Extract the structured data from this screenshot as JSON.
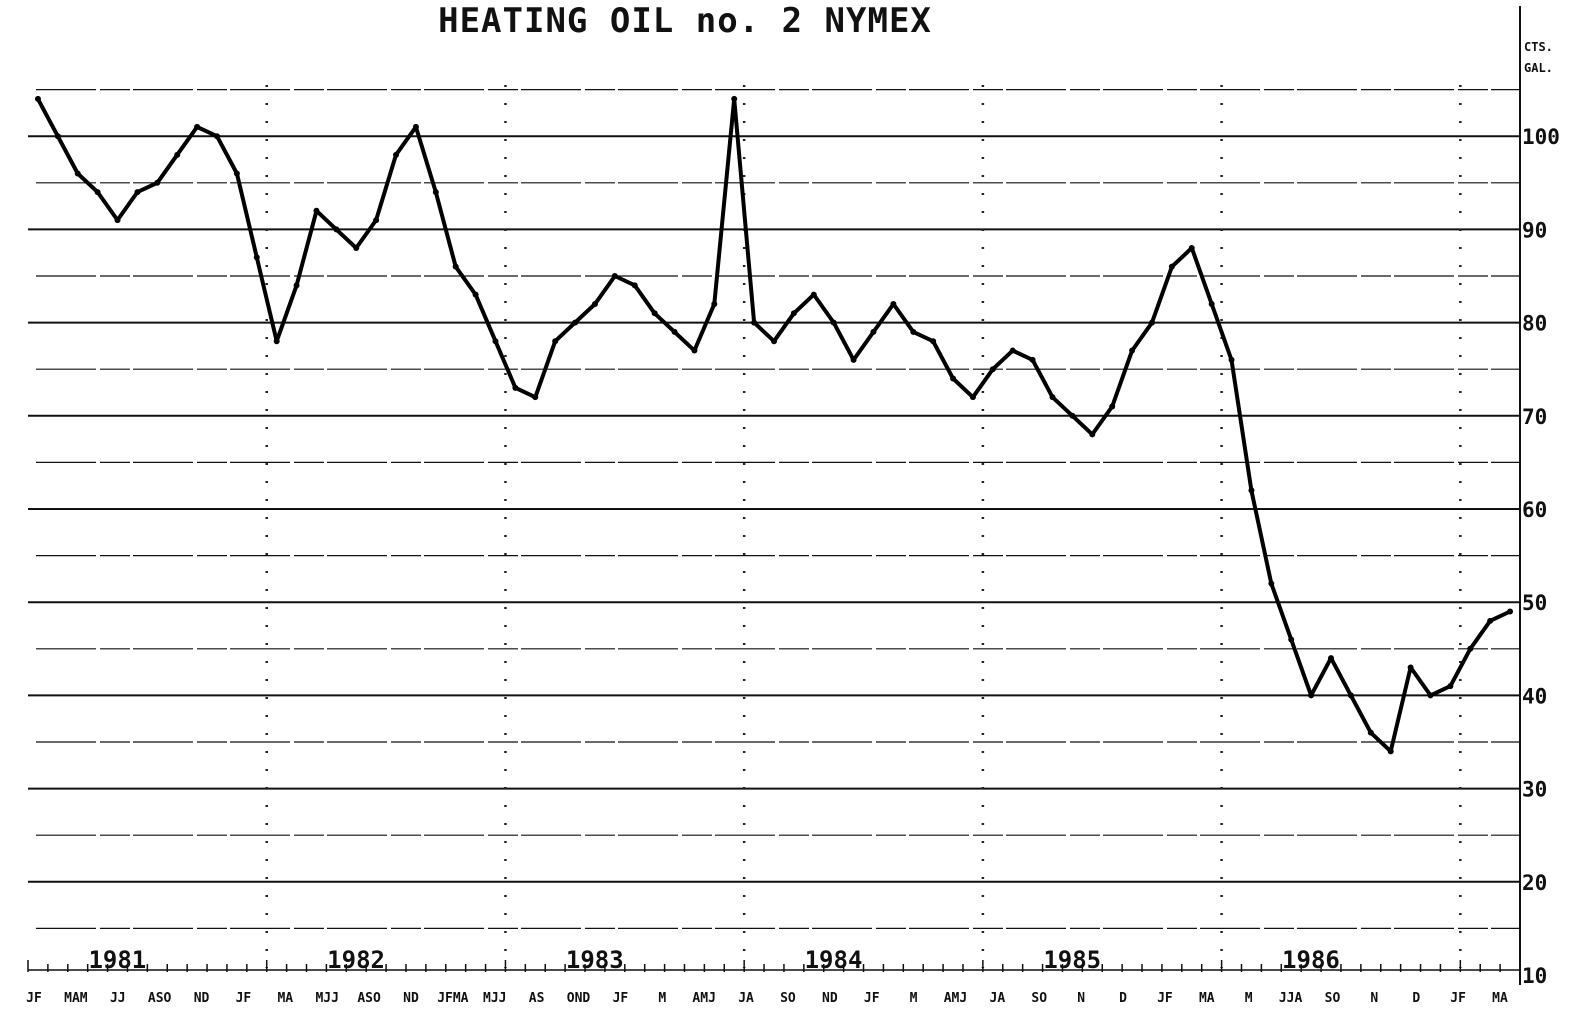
{
  "chart_data": {
    "type": "line",
    "title": "HEATING OIL no. 2  NYMEX",
    "unit_label": [
      "CTS.",
      "GAL."
    ],
    "xlabel": "",
    "ylabel": "",
    "ylim": [
      10,
      105
    ],
    "y_ticks": [
      10,
      20,
      30,
      40,
      50,
      60,
      70,
      80,
      90,
      100
    ],
    "grid": true,
    "years": [
      "1981",
      "1982",
      "1983",
      "1984",
      "1985",
      "1986"
    ],
    "month_labels": [
      "JF",
      "MAM",
      "JJ",
      "ASO",
      "ND",
      "JF",
      "MA",
      "MJJ",
      "ASO",
      "ND",
      "JFMA",
      "MJJ",
      "AS",
      "OND",
      "JF",
      "M",
      "AMJ",
      "JA",
      "SO",
      "ND",
      "JF",
      "M",
      "AMJ",
      "JA",
      "SO",
      "N",
      "D",
      "JF",
      "MA",
      "M",
      "JJA",
      "SO",
      "N",
      "D",
      "JF",
      "MA"
    ],
    "series": [
      {
        "x": [
          "1981-01",
          "1981-02",
          "1981-03",
          "1981-04",
          "1981-05",
          "1981-06",
          "1981-07",
          "1981-08",
          "1981-09",
          "1981-10",
          "1981-11",
          "1981-12",
          "1982-01",
          "1982-02",
          "1982-03",
          "1982-04",
          "1982-05",
          "1982-06",
          "1982-07",
          "1982-08",
          "1982-09",
          "1982-10",
          "1982-11",
          "1982-12",
          "1983-01",
          "1983-02",
          "1983-03",
          "1983-04",
          "1983-05",
          "1983-06",
          "1983-07",
          "1983-08",
          "1983-09",
          "1983-10",
          "1983-11",
          "1983-12",
          "1984-01",
          "1984-02",
          "1984-03",
          "1984-04",
          "1984-05",
          "1984-06",
          "1984-07",
          "1984-08",
          "1984-09",
          "1984-10",
          "1984-11",
          "1984-12",
          "1985-01",
          "1985-02",
          "1985-03",
          "1985-04",
          "1985-05",
          "1985-06",
          "1985-07",
          "1985-08",
          "1985-09",
          "1985-10",
          "1985-11",
          "1985-12",
          "1986-01",
          "1986-02",
          "1986-03",
          "1986-04",
          "1986-05",
          "1986-06",
          "1986-07",
          "1986-08",
          "1986-09",
          "1986-10",
          "1986-11",
          "1986-12",
          "1987-01",
          "1987-02",
          "1987-03"
        ],
        "values": [
          104,
          100,
          96,
          94,
          91,
          94,
          95,
          98,
          101,
          100,
          96,
          87,
          78,
          84,
          92,
          90,
          88,
          91,
          98,
          101,
          94,
          86,
          83,
          78,
          73,
          72,
          78,
          80,
          82,
          85,
          84,
          81,
          79,
          77,
          82,
          104,
          80,
          78,
          81,
          83,
          80,
          76,
          79,
          82,
          79,
          78,
          74,
          72,
          75,
          77,
          76,
          72,
          70,
          68,
          71,
          77,
          80,
          86,
          88,
          82,
          76,
          62,
          52,
          46,
          40,
          44,
          40,
          36,
          34,
          43,
          40,
          41,
          45,
          48,
          49
        ]
      }
    ]
  }
}
